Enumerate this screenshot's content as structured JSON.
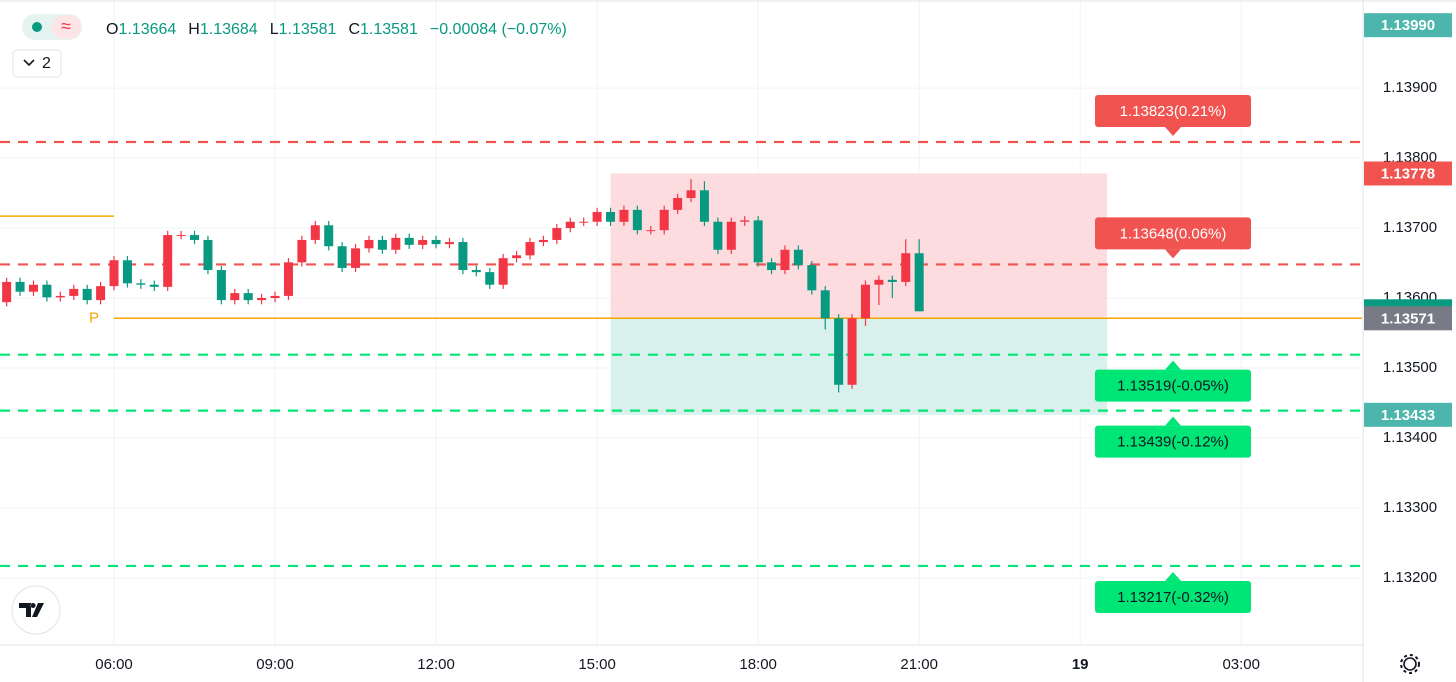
{
  "header": {
    "dot_badge": "≈",
    "interval_count": "2",
    "ohlc": [
      {
        "key": "O",
        "value": "1.13664"
      },
      {
        "key": "H",
        "value": "1.13684"
      },
      {
        "key": "L",
        "value": "1.13581"
      },
      {
        "key": "C",
        "value": "1.13581"
      }
    ],
    "change": "−0.00084 (−0.07%)"
  },
  "chart_data": {
    "type": "candlestick",
    "up_color": "#f23645",
    "down_color": "#089981",
    "grid": true,
    "xlim": [
      3.876,
      29.25
    ],
    "ylim": [
      1.13104,
      1.14026
    ],
    "xticks": [
      {
        "value": 6,
        "label": "06:00"
      },
      {
        "value": 9,
        "label": "09:00"
      },
      {
        "value": 12,
        "label": "12:00"
      },
      {
        "value": 15,
        "label": "15:00"
      },
      {
        "value": 18,
        "label": "18:00"
      },
      {
        "value": 21,
        "label": "21:00"
      },
      {
        "value": 24,
        "label": "19"
      },
      {
        "value": 27,
        "label": "03:00"
      }
    ],
    "yticks": [
      {
        "value": 1.139,
        "label": "1.13900"
      },
      {
        "value": 1.138,
        "label": "1.13800"
      },
      {
        "value": 1.137,
        "label": "1.13700"
      },
      {
        "value": 1.136,
        "label": "1.13600"
      },
      {
        "value": 1.135,
        "label": "1.13500"
      },
      {
        "value": 1.134,
        "label": "1.13400"
      },
      {
        "value": 1.133,
        "label": "1.13300"
      },
      {
        "value": 1.132,
        "label": "1.13200"
      }
    ],
    "x": [
      4,
      4.25,
      4.5,
      4.75,
      5,
      5.25,
      5.5,
      5.75,
      6,
      6.25,
      6.5,
      6.75,
      7,
      7.25,
      7.5,
      7.75,
      8,
      8.25,
      8.5,
      8.75,
      9,
      9.25,
      9.5,
      9.75,
      10,
      10.25,
      10.5,
      10.75,
      11,
      11.25,
      11.5,
      11.75,
      12,
      12.25,
      12.5,
      12.75,
      13,
      13.25,
      13.5,
      13.75,
      14,
      14.25,
      14.5,
      14.75,
      15,
      15.25,
      15.5,
      15.75,
      16,
      16.25,
      16.5,
      16.75,
      17,
      17.25,
      17.5,
      17.75,
      18,
      18.25,
      18.5,
      18.75,
      19,
      19.25,
      19.5,
      19.75,
      20,
      20.25,
      20.5,
      20.75,
      21
    ],
    "open": [
      1.13594,
      1.13623,
      1.13609,
      1.13619,
      1.13601,
      1.13603,
      1.13613,
      1.13597,
      1.13617,
      1.13654,
      1.13621,
      1.13619,
      1.13616,
      1.1369,
      1.1369,
      1.13683,
      1.1364,
      1.13597,
      1.13607,
      1.13597,
      1.136,
      1.13603,
      1.13651,
      1.13683,
      1.13704,
      1.13674,
      1.13643,
      1.13671,
      1.13683,
      1.13669,
      1.13686,
      1.13676,
      1.13683,
      1.13677,
      1.1368,
      1.1364,
      1.13637,
      1.13619,
      1.13657,
      1.13661,
      1.1368,
      1.13683,
      1.137,
      1.13709,
      1.13709,
      1.13723,
      1.13709,
      1.13726,
      1.13697,
      1.13697,
      1.13726,
      1.13743,
      1.13754,
      1.13709,
      1.13669,
      1.13709,
      1.13711,
      1.13651,
      1.1364,
      1.13669,
      1.13647,
      1.13611,
      1.13571,
      1.13476,
      1.13571,
      1.13619,
      1.13626,
      1.13623,
      1.13664
    ],
    "high": [
      1.13629,
      1.13629,
      1.13625,
      1.13625,
      1.13609,
      1.13619,
      1.13619,
      1.13623,
      1.1366,
      1.1366,
      1.13627,
      1.13625,
      1.13696,
      1.13696,
      1.13696,
      1.13689,
      1.13646,
      1.13613,
      1.13613,
      1.13606,
      1.13609,
      1.13657,
      1.13689,
      1.1371,
      1.1371,
      1.1368,
      1.13677,
      1.13689,
      1.13689,
      1.13692,
      1.13692,
      1.13689,
      1.13689,
      1.13686,
      1.13686,
      1.13646,
      1.13643,
      1.13663,
      1.13667,
      1.13686,
      1.13689,
      1.13706,
      1.13715,
      1.13715,
      1.13729,
      1.13729,
      1.13732,
      1.13732,
      1.13703,
      1.13732,
      1.13749,
      1.1377,
      1.13767,
      1.13715,
      1.13715,
      1.13717,
      1.13717,
      1.13657,
      1.13675,
      1.13675,
      1.13653,
      1.13617,
      1.13577,
      1.13577,
      1.13625,
      1.13632,
      1.13632,
      1.13684,
      1.13684
    ],
    "low": [
      1.13588,
      1.13603,
      1.13603,
      1.13595,
      1.13595,
      1.13597,
      1.13591,
      1.13591,
      1.13611,
      1.13615,
      1.13613,
      1.1361,
      1.1361,
      1.13684,
      1.13677,
      1.13634,
      1.13591,
      1.13591,
      1.13591,
      1.13591,
      1.13594,
      1.13597,
      1.13645,
      1.13677,
      1.13668,
      1.13637,
      1.13637,
      1.13665,
      1.13663,
      1.13663,
      1.1367,
      1.1367,
      1.13671,
      1.13671,
      1.13634,
      1.13631,
      1.13613,
      1.13613,
      1.13651,
      1.13655,
      1.13674,
      1.13677,
      1.13694,
      1.13703,
      1.13703,
      1.13703,
      1.13703,
      1.13691,
      1.13691,
      1.13691,
      1.1372,
      1.13737,
      1.13703,
      1.13663,
      1.13663,
      1.13703,
      1.13645,
      1.13634,
      1.13634,
      1.13641,
      1.13605,
      1.13555,
      1.13465,
      1.1347,
      1.1356,
      1.1359,
      1.136,
      1.13617,
      1.13581
    ],
    "close": [
      1.13623,
      1.13609,
      1.13619,
      1.13601,
      1.13603,
      1.13613,
      1.13597,
      1.13617,
      1.13654,
      1.13621,
      1.13619,
      1.13616,
      1.1369,
      1.1369,
      1.13683,
      1.1364,
      1.13597,
      1.13607,
      1.13597,
      1.136,
      1.13603,
      1.13651,
      1.13683,
      1.13704,
      1.13674,
      1.13643,
      1.13671,
      1.13683,
      1.13669,
      1.13686,
      1.13676,
      1.13683,
      1.13677,
      1.1368,
      1.1364,
      1.13637,
      1.13619,
      1.13657,
      1.13661,
      1.1368,
      1.13683,
      1.137,
      1.13709,
      1.13709,
      1.13723,
      1.13709,
      1.13726,
      1.13697,
      1.13697,
      1.13726,
      1.13743,
      1.13754,
      1.13709,
      1.13669,
      1.13709,
      1.13711,
      1.13651,
      1.1364,
      1.13669,
      1.13647,
      1.13611,
      1.13571,
      1.13476,
      1.13571,
      1.13619,
      1.13626,
      1.13623,
      1.13664,
      1.13581
    ],
    "zones": [
      {
        "start": 15.25,
        "end": 24.5,
        "top": 1.13778,
        "bottom": 1.13571,
        "color": "#fcdcde"
      },
      {
        "start": 15.25,
        "end": 24.5,
        "top": 1.13571,
        "bottom": 1.13433,
        "color": "#d9f1ec"
      }
    ],
    "pivots": [
      {
        "value": 1.13571,
        "start": 6,
        "label": "P",
        "color": "#f7a600"
      },
      {
        "value": 1.13717,
        "end": 6,
        "color": "#f7a600"
      }
    ],
    "levels": [
      {
        "value": 1.13823,
        "label": "1.13823(0.21%)",
        "color": "#f05350"
      },
      {
        "value": 1.13648,
        "label": "1.13648(0.06%)",
        "color": "#f05350"
      },
      {
        "value": 1.13519,
        "label": "1.13519(-0.05%)",
        "color": "#00e676"
      },
      {
        "value": 1.13439,
        "label": "1.13439(-0.12%)",
        "color": "#00e676"
      },
      {
        "value": 1.13217,
        "label": "1.13217(-0.32%)",
        "color": "#00e676"
      }
    ],
    "badges": [
      {
        "value": 1.1399,
        "label": "1.13990",
        "color": "#4db6ac"
      },
      {
        "value": 1.13778,
        "color": "#f05350"
      },
      {
        "value": 1.13581,
        "color": "#089981"
      },
      {
        "value": 1.13571,
        "color": "#787b86"
      },
      {
        "value": 1.13433,
        "color": "#4db6ac"
      }
    ]
  }
}
